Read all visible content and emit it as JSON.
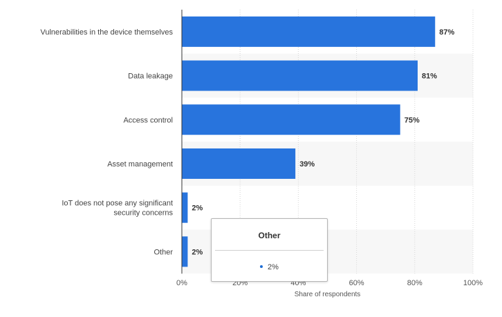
{
  "chart_data": {
    "type": "bar",
    "orientation": "horizontal",
    "categories": [
      [
        "Vulnerabilities in the device themselves"
      ],
      [
        "Data leakage"
      ],
      [
        "Access control"
      ],
      [
        "Asset management"
      ],
      [
        "IoT does not pose any significant",
        "security concerns"
      ],
      [
        "Other"
      ]
    ],
    "values": [
      87,
      81,
      75,
      39,
      2,
      2
    ],
    "data_labels": [
      "87%",
      "81%",
      "75%",
      "39%",
      "2%",
      "2%"
    ],
    "xlabel": "Share of respondents",
    "ylabel": "",
    "xlim": [
      0,
      100
    ],
    "x_ticks": [
      0,
      20,
      40,
      60,
      80,
      100
    ],
    "x_tick_labels": [
      "0%",
      "20%",
      "40%",
      "60%",
      "80%",
      "100%"
    ],
    "grid": true,
    "legend": "none",
    "bar_color": "#2874dd",
    "band_color": "#f7f7f7"
  },
  "tooltip": {
    "title": "Other",
    "value": "2%",
    "dot_color": "#1f6ed4"
  }
}
